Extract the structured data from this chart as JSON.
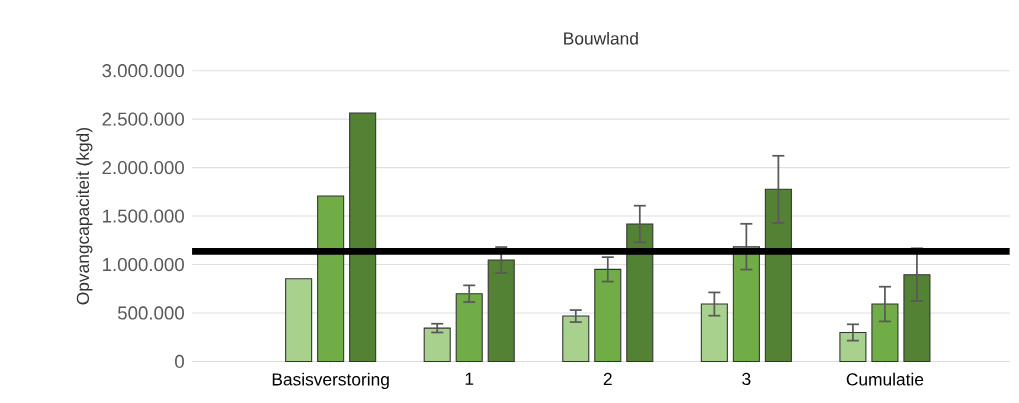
{
  "chart_data": {
    "type": "bar",
    "title": "Bouwland",
    "ylabel": "Opvangcapaciteit (kgd)",
    "categories": [
      "Basisverstoring",
      "1",
      "2",
      "3",
      "Cumulatie"
    ],
    "series": [
      {
        "color": "#a9d18e",
        "values": [
          853000,
          344000,
          468000,
          592000,
          299000
        ],
        "errors": [
          null,
          45000,
          62000,
          120000,
          84000
        ]
      },
      {
        "color": "#70ad47",
        "values": [
          1707000,
          699000,
          950000,
          1184000,
          592000
        ],
        "errors": [
          null,
          86000,
          126000,
          236000,
          179000
        ]
      },
      {
        "color": "#548235",
        "values": [
          2564000,
          1046000,
          1418000,
          1776000,
          895000
        ],
        "errors": [
          null,
          134000,
          189000,
          346000,
          272000
        ]
      }
    ],
    "ylim": [
      0,
      3000000
    ],
    "yticks": [
      0,
      {
        "value": 500000,
        "label": "500.000"
      },
      {
        "value": 1000000,
        "label": "1.000.000"
      },
      {
        "value": 1500000,
        "label": "1.500.000"
      },
      {
        "value": 2000000,
        "label": "2.000.000"
      },
      {
        "value": 2500000,
        "label": "2.500.000"
      },
      {
        "value": 3000000,
        "label": "3.000.000"
      }
    ],
    "grid": "y",
    "ref_lines": [
      {
        "axis": "y",
        "value": 1135000,
        "color": "#000000"
      }
    ]
  }
}
